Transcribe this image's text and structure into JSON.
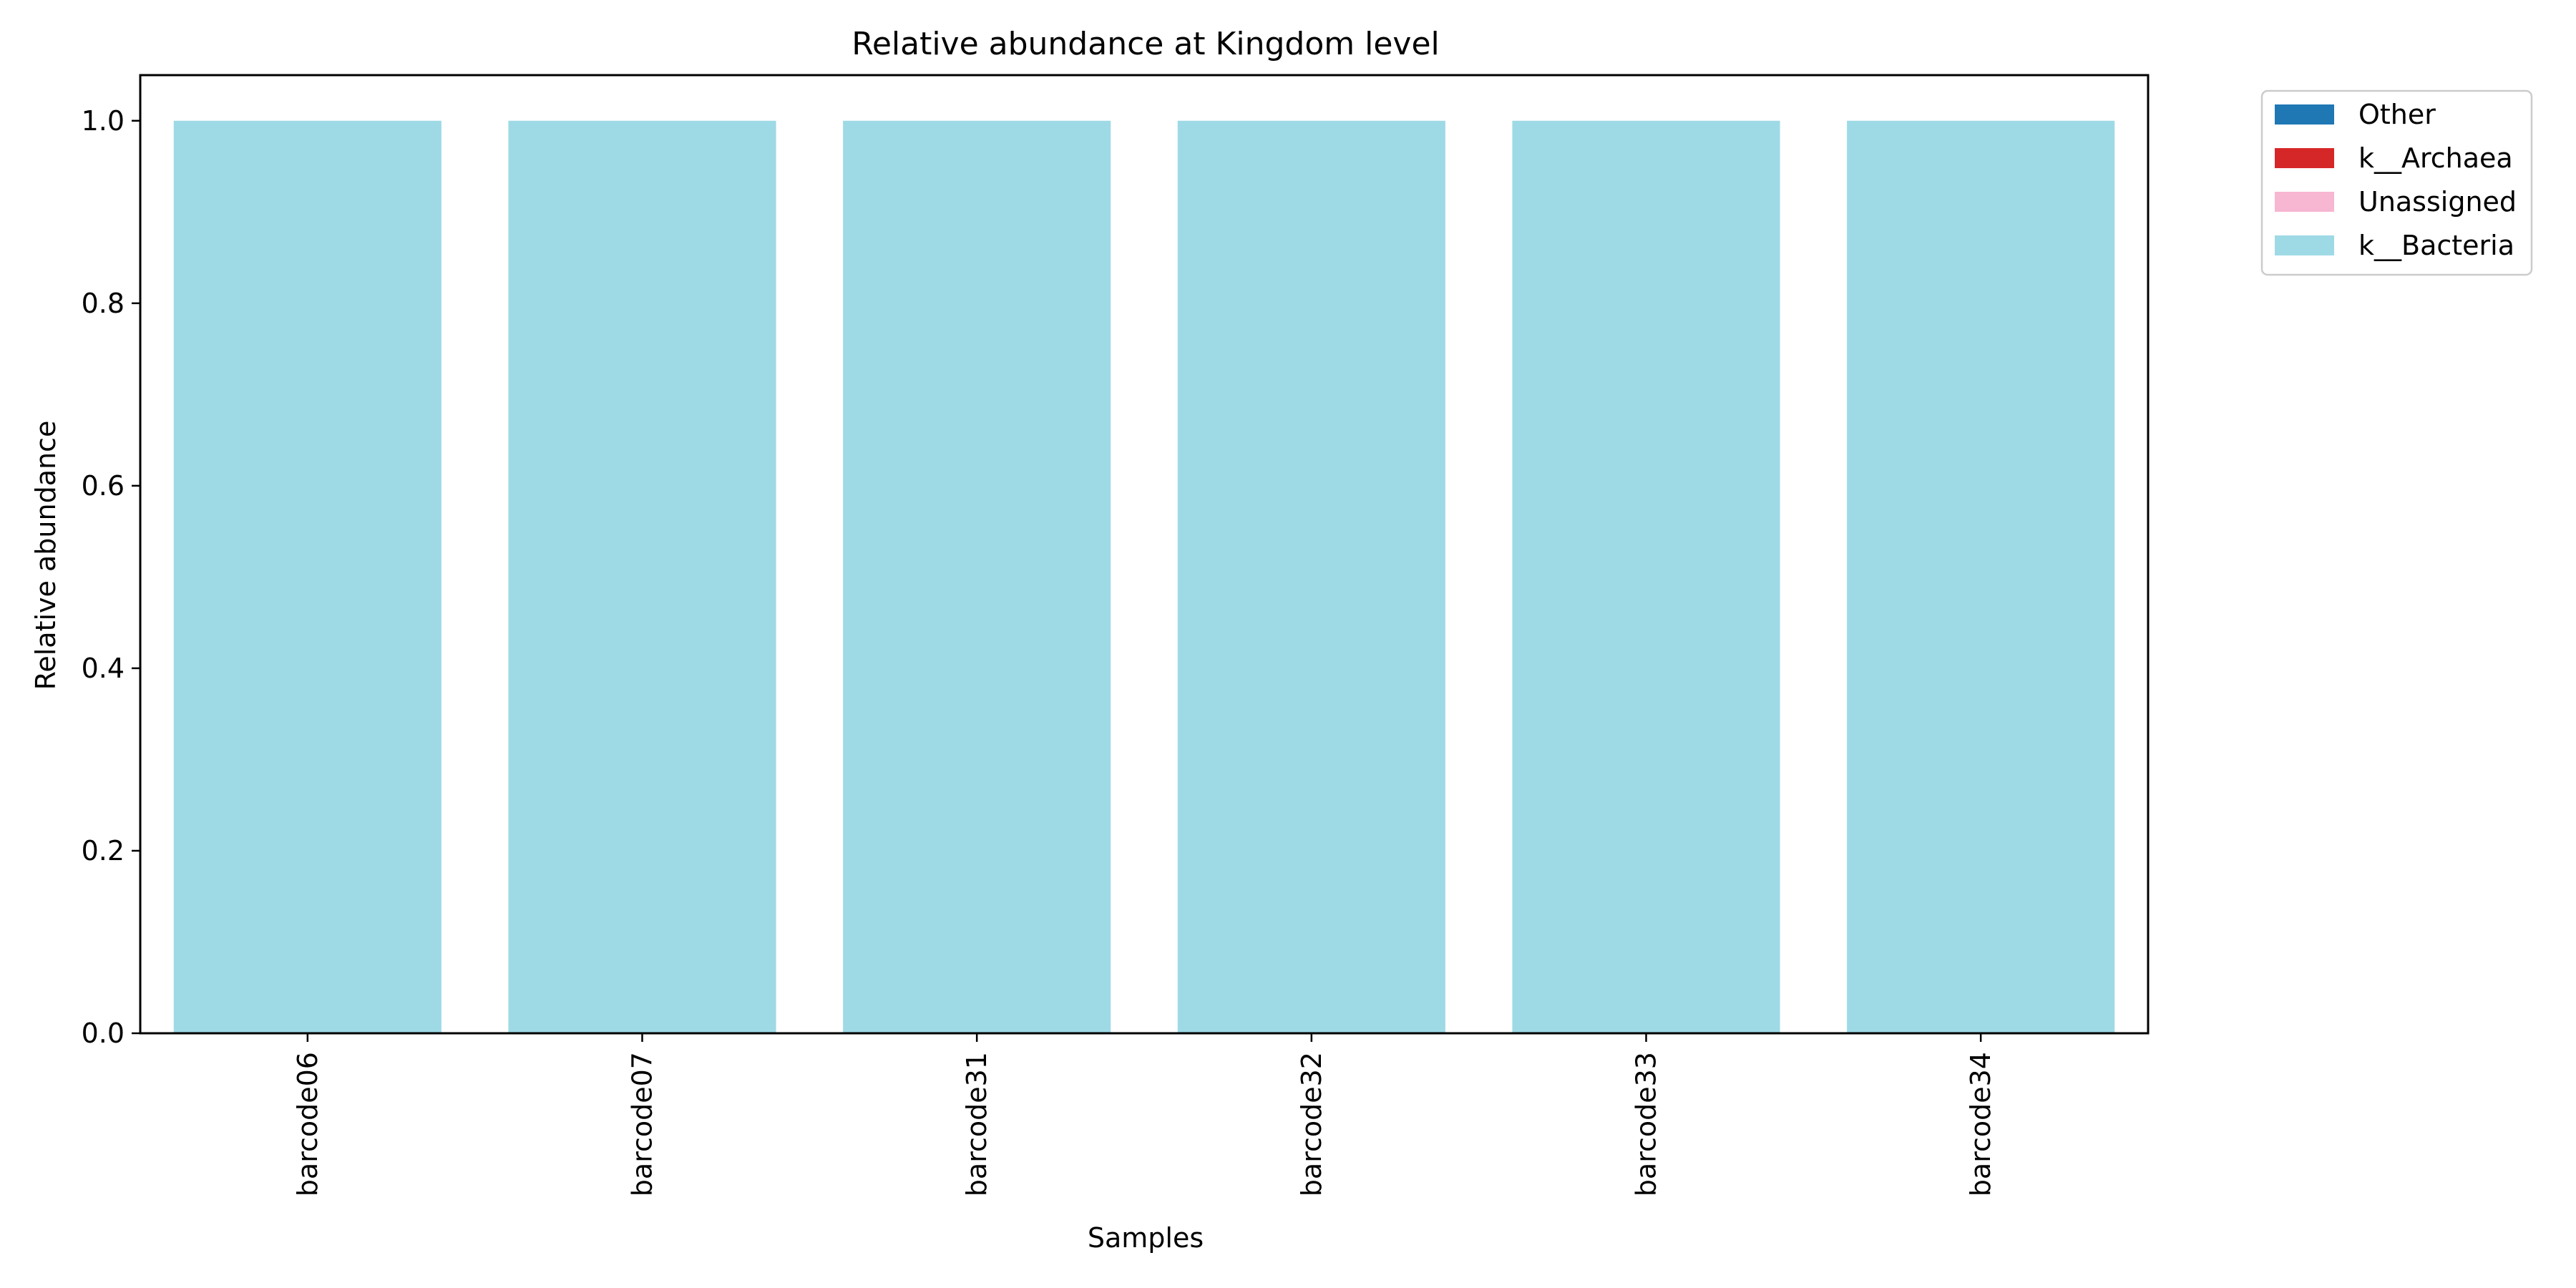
{
  "chart_data": {
    "type": "bar",
    "stacked": true,
    "title": "Relative abundance at Kingdom level",
    "xlabel": "Samples",
    "ylabel": "Relative abundance",
    "categories": [
      "barcode06",
      "barcode07",
      "barcode31",
      "barcode32",
      "barcode33",
      "barcode34"
    ],
    "series": [
      {
        "name": "Other",
        "color": "#1f77b4",
        "values": [
          0,
          0,
          0,
          0,
          0,
          0
        ]
      },
      {
        "name": "k__Archaea",
        "color": "#d62728",
        "values": [
          0,
          0,
          0,
          0,
          0,
          0
        ]
      },
      {
        "name": "Unassigned",
        "color": "#f7b6d2",
        "values": [
          0,
          0,
          0,
          0,
          0,
          0
        ]
      },
      {
        "name": "k__Bacteria",
        "color": "#9edae5",
        "values": [
          1.0,
          1.0,
          1.0,
          1.0,
          1.0,
          1.0
        ]
      }
    ],
    "ylim": [
      0,
      1.05
    ],
    "yticks": [
      0.0,
      0.2,
      0.4,
      0.6,
      0.8,
      1.0
    ],
    "ytick_labels": [
      "0.0",
      "0.2",
      "0.4",
      "0.6",
      "0.8",
      "1.0"
    ],
    "grid": false,
    "legend_position": "outside-top-right"
  }
}
